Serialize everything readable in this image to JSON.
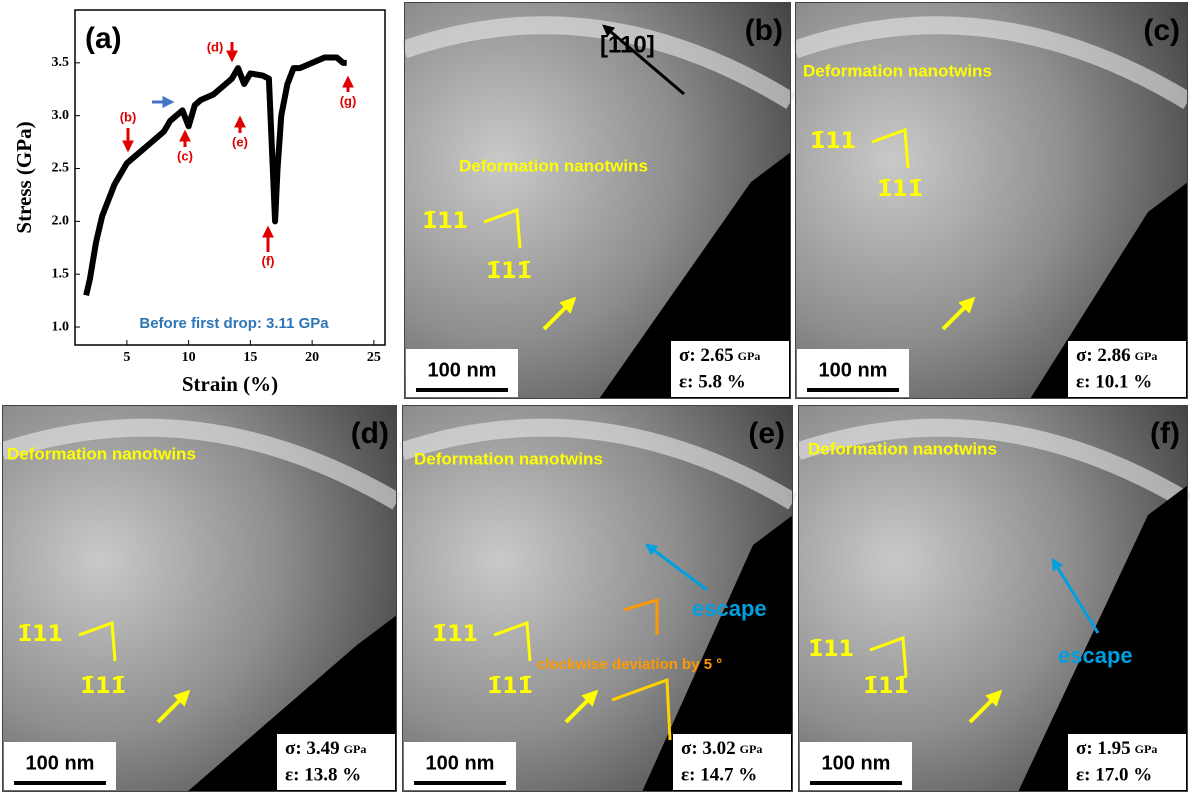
{
  "chart_data": {
    "type": "line",
    "panel_label": "(a)",
    "x_label": "Strain (%)",
    "y_label": "Stress (GPa)",
    "annotation": "Before first drop: 3.11 GPa",
    "markers": [
      "(b)",
      "(c)",
      "(d)",
      "(e)",
      "(f)",
      "(g)"
    ],
    "x": [
      1.7,
      2,
      2.5,
      3,
      3.5,
      4,
      4.5,
      5,
      5.5,
      6,
      7,
      8,
      8.5,
      9,
      9.5,
      10,
      10.5,
      11,
      12,
      13,
      13.5,
      14,
      14.5,
      15,
      16,
      16.5,
      17,
      17.2,
      17.5,
      18,
      18.5,
      19,
      20,
      21,
      22,
      22.5,
      22.8
    ],
    "values": [
      1.3,
      1.45,
      1.8,
      2.05,
      2.2,
      2.35,
      2.45,
      2.55,
      2.6,
      2.65,
      2.75,
      2.85,
      2.95,
      3.0,
      3.05,
      2.9,
      3.1,
      3.15,
      3.2,
      3.3,
      3.35,
      3.45,
      3.3,
      3.4,
      3.38,
      3.35,
      2.0,
      2.5,
      3.0,
      3.3,
      3.45,
      3.45,
      3.5,
      3.55,
      3.55,
      3.5,
      3.5
    ],
    "color": "#000000",
    "xlim": [
      0.8,
      25.9
    ],
    "xticks": [
      5,
      10,
      15,
      20,
      25
    ],
    "ylim": [
      0.83,
      4.0
    ],
    "yticks": [
      {
        "value": 1,
        "label": "1.0"
      },
      {
        "value": 1.5,
        "label": "1.5"
      },
      {
        "value": 2,
        "label": "2.0"
      },
      {
        "value": 2.5,
        "label": "2.5"
      },
      {
        "value": 3,
        "label": "3.0"
      },
      {
        "value": 3.5,
        "label": "3.5"
      }
    ]
  },
  "panels": [
    {
      "label": "(b)",
      "annotations": [
        "[110]",
        "Deformation nanotwins"
      ],
      "index_a": "1̄11",
      "index_b": "1̄11̄",
      "scale_bar": "100 nm",
      "stress": "σ: 2.65",
      "stress_unit": "GPa",
      "strain": "ε: 5.8 %"
    },
    {
      "label": "(c)",
      "annotations": [
        "Deformation nanotwins"
      ],
      "index_a": "1̄11",
      "index_b": "1̄11̄",
      "scale_bar": "100 nm",
      "stress": "σ: 2.86",
      "stress_unit": "GPa",
      "strain": "ε: 10.1 %"
    },
    {
      "label": "(d)",
      "annotations": [
        "Deformation nanotwins"
      ],
      "index_a": "1̄11",
      "index_b": "1̄11̄",
      "scale_bar": "100 nm",
      "stress": "σ: 3.49",
      "stress_unit": "GPa",
      "strain": "ε: 13.8 %"
    },
    {
      "label": "(e)",
      "annotations": [
        "Deformation nanotwins",
        "escape",
        "clockwise deviation by 5 °"
      ],
      "index_a": "1̄11",
      "index_b": "1̄11̄",
      "scale_bar": "100 nm",
      "stress": "σ: 3.02",
      "stress_unit": "GPa",
      "strain": "ε: 14.7 %"
    },
    {
      "label": "(f)",
      "annotations": [
        "Deformation nanotwins",
        "escape"
      ],
      "index_a": "1̄11",
      "index_b": "1̄11̄",
      "scale_bar": "100 nm",
      "stress": "σ: 1.95",
      "stress_unit": "GPa",
      "strain": "ε: 17.0 %"
    }
  ]
}
